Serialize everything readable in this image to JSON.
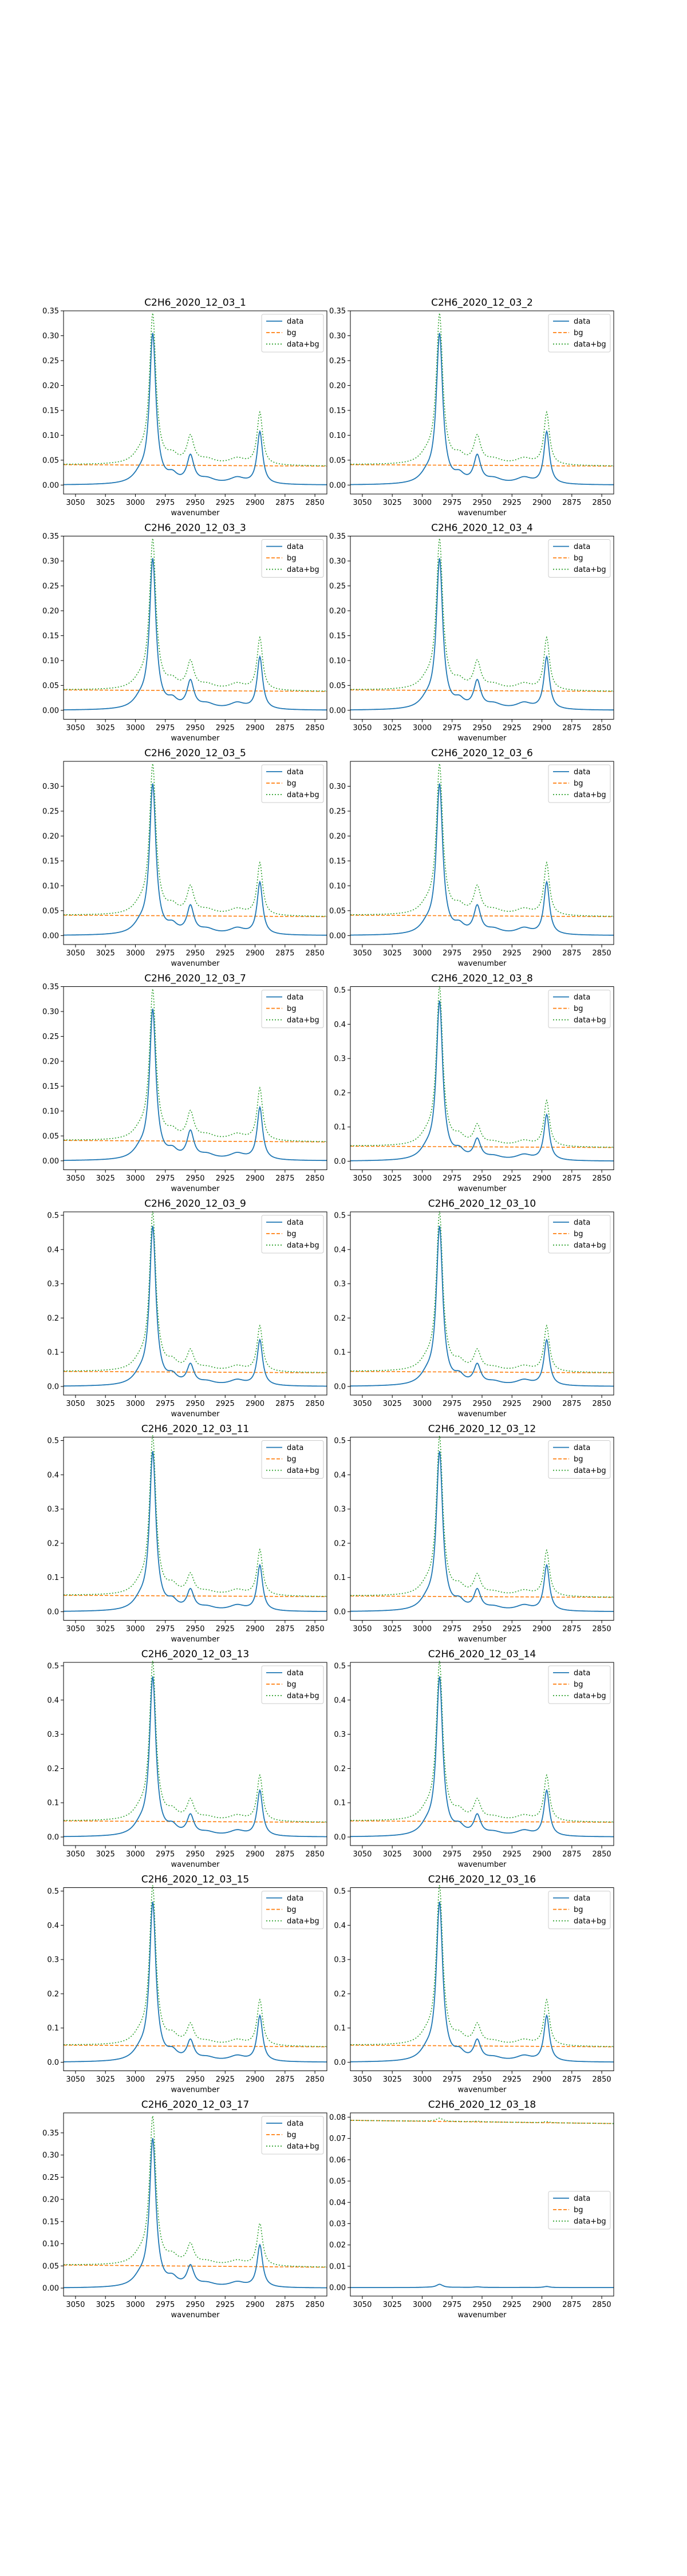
{
  "figure": {
    "background": "#ffffff"
  },
  "series_styles": [
    {
      "name": "data",
      "color": "#1f77b4",
      "dash": "solid"
    },
    {
      "name": "bg",
      "color": "#ff7f0e",
      "dash": "dashed"
    },
    {
      "name": "data+bg",
      "color": "#2ca02c",
      "dash": "dotted"
    }
  ],
  "chart_data": [
    {
      "type": "line",
      "title": "C2H6_2020_12_03_1",
      "xlabel": "wavenumber",
      "ylabel": "",
      "xlim": [
        3060,
        2840
      ],
      "x_ticks": [
        3050,
        3025,
        3000,
        2975,
        2950,
        2925,
        2900,
        2875,
        2850
      ],
      "ylim": [
        -0.018,
        0.35
      ],
      "y_ticks": [
        0.0,
        0.05,
        0.1,
        0.15,
        0.2,
        0.25,
        0.3,
        0.35
      ],
      "y_tick_decimals": 2,
      "grid": false,
      "legend_position": "upper-right",
      "data_peaks": {
        "baseline": 0.0,
        "main": 0.298,
        "mid": 0.054,
        "small": 0.105
      },
      "bg_level": [
        0.041,
        0.038
      ]
    },
    {
      "type": "line",
      "title": "C2H6_2020_12_03_2",
      "xlabel": "wavenumber",
      "ylabel": "",
      "xlim": [
        3060,
        2840
      ],
      "x_ticks": [
        3050,
        3025,
        3000,
        2975,
        2950,
        2925,
        2900,
        2875,
        2850
      ],
      "ylim": [
        -0.018,
        0.35
      ],
      "y_ticks": [
        0.0,
        0.05,
        0.1,
        0.15,
        0.2,
        0.25,
        0.3,
        0.35
      ],
      "y_tick_decimals": 2,
      "grid": false,
      "legend_position": "upper-right",
      "data_peaks": {
        "baseline": 0.0,
        "main": 0.298,
        "mid": 0.054,
        "small": 0.105
      },
      "bg_level": [
        0.041,
        0.038
      ]
    },
    {
      "type": "line",
      "title": "C2H6_2020_12_03_3",
      "xlabel": "wavenumber",
      "ylabel": "",
      "xlim": [
        3060,
        2840
      ],
      "x_ticks": [
        3050,
        3025,
        3000,
        2975,
        2950,
        2925,
        2900,
        2875,
        2850
      ],
      "ylim": [
        -0.018,
        0.35
      ],
      "y_ticks": [
        0.0,
        0.05,
        0.1,
        0.15,
        0.2,
        0.25,
        0.3,
        0.35
      ],
      "y_tick_decimals": 2,
      "grid": false,
      "legend_position": "upper-right",
      "data_peaks": {
        "baseline": 0.0,
        "main": 0.298,
        "mid": 0.054,
        "small": 0.105
      },
      "bg_level": [
        0.041,
        0.038
      ]
    },
    {
      "type": "line",
      "title": "C2H6_2020_12_03_4",
      "xlabel": "wavenumber",
      "ylabel": "",
      "xlim": [
        3060,
        2840
      ],
      "x_ticks": [
        3050,
        3025,
        3000,
        2975,
        2950,
        2925,
        2900,
        2875,
        2850
      ],
      "ylim": [
        -0.018,
        0.35
      ],
      "y_ticks": [
        0.0,
        0.05,
        0.1,
        0.15,
        0.2,
        0.25,
        0.3,
        0.35
      ],
      "y_tick_decimals": 2,
      "grid": false,
      "legend_position": "upper-right",
      "data_peaks": {
        "baseline": 0.0,
        "main": 0.298,
        "mid": 0.054,
        "small": 0.105
      },
      "bg_level": [
        0.041,
        0.038
      ]
    },
    {
      "type": "line",
      "title": "C2H6_2020_12_03_5",
      "xlabel": "wavenumber",
      "ylabel": "",
      "xlim": [
        3060,
        2840
      ],
      "x_ticks": [
        3050,
        3025,
        3000,
        2975,
        2950,
        2925,
        2900,
        2875,
        2850
      ],
      "ylim": [
        -0.018,
        0.35
      ],
      "y_ticks": [
        0.0,
        0.05,
        0.1,
        0.15,
        0.2,
        0.25,
        0.3
      ],
      "y_tick_decimals": 2,
      "grid": false,
      "legend_position": "upper-right",
      "data_peaks": {
        "baseline": 0.0,
        "main": 0.298,
        "mid": 0.054,
        "small": 0.105
      },
      "bg_level": [
        0.041,
        0.038
      ]
    },
    {
      "type": "line",
      "title": "C2H6_2020_12_03_6",
      "xlabel": "wavenumber",
      "ylabel": "",
      "xlim": [
        3060,
        2840
      ],
      "x_ticks": [
        3050,
        3025,
        3000,
        2975,
        2950,
        2925,
        2900,
        2875,
        2850
      ],
      "ylim": [
        -0.018,
        0.35
      ],
      "y_ticks": [
        0.0,
        0.05,
        0.1,
        0.15,
        0.2,
        0.25,
        0.3
      ],
      "y_tick_decimals": 2,
      "grid": false,
      "legend_position": "upper-right",
      "data_peaks": {
        "baseline": 0.0,
        "main": 0.298,
        "mid": 0.054,
        "small": 0.105
      },
      "bg_level": [
        0.041,
        0.038
      ]
    },
    {
      "type": "line",
      "title": "C2H6_2020_12_03_7",
      "xlabel": "wavenumber",
      "ylabel": "",
      "xlim": [
        3060,
        2840
      ],
      "x_ticks": [
        3050,
        3025,
        3000,
        2975,
        2950,
        2925,
        2900,
        2875,
        2850
      ],
      "ylim": [
        -0.018,
        0.35
      ],
      "y_ticks": [
        0.0,
        0.05,
        0.1,
        0.15,
        0.2,
        0.25,
        0.3,
        0.35
      ],
      "y_tick_decimals": 2,
      "grid": false,
      "legend_position": "upper-right",
      "data_peaks": {
        "baseline": 0.0,
        "main": 0.298,
        "mid": 0.054,
        "small": 0.105
      },
      "bg_level": [
        0.041,
        0.038
      ]
    },
    {
      "type": "line",
      "title": "C2H6_2020_12_03_8",
      "xlabel": "wavenumber",
      "ylabel": "",
      "xlim": [
        3060,
        2840
      ],
      "x_ticks": [
        3050,
        3025,
        3000,
        2975,
        2950,
        2925,
        2900,
        2875,
        2850
      ],
      "ylim": [
        -0.025,
        0.51
      ],
      "y_ticks": [
        0.0,
        0.1,
        0.2,
        0.3,
        0.4,
        0.5
      ],
      "y_tick_decimals": 1,
      "grid": false,
      "legend_position": "upper-right",
      "data_peaks": {
        "baseline": 0.0,
        "main": 0.458,
        "mid": 0.057,
        "small": 0.133
      },
      "bg_level": [
        0.044,
        0.04
      ]
    },
    {
      "type": "line",
      "title": "C2H6_2020_12_03_9",
      "xlabel": "wavenumber",
      "ylabel": "",
      "xlim": [
        3060,
        2840
      ],
      "x_ticks": [
        3050,
        3025,
        3000,
        2975,
        2950,
        2925,
        2900,
        2875,
        2850
      ],
      "ylim": [
        -0.025,
        0.51
      ],
      "y_ticks": [
        0.0,
        0.1,
        0.2,
        0.3,
        0.4,
        0.5
      ],
      "y_tick_decimals": 1,
      "grid": false,
      "legend_position": "upper-right",
      "data_peaks": {
        "baseline": 0.0,
        "main": 0.458,
        "mid": 0.057,
        "small": 0.133
      },
      "bg_level": [
        0.044,
        0.04
      ]
    },
    {
      "type": "line",
      "title": "C2H6_2020_12_03_10",
      "xlabel": "wavenumber",
      "ylabel": "",
      "xlim": [
        3060,
        2840
      ],
      "x_ticks": [
        3050,
        3025,
        3000,
        2975,
        2950,
        2925,
        2900,
        2875,
        2850
      ],
      "ylim": [
        -0.025,
        0.51
      ],
      "y_ticks": [
        0.0,
        0.1,
        0.2,
        0.3,
        0.4,
        0.5
      ],
      "y_tick_decimals": 1,
      "grid": false,
      "legend_position": "upper-right",
      "data_peaks": {
        "baseline": 0.0,
        "main": 0.458,
        "mid": 0.057,
        "small": 0.133
      },
      "bg_level": [
        0.044,
        0.04
      ]
    },
    {
      "type": "line",
      "title": "C2H6_2020_12_03_11",
      "xlabel": "wavenumber",
      "ylabel": "",
      "xlim": [
        3060,
        2840
      ],
      "x_ticks": [
        3050,
        3025,
        3000,
        2975,
        2950,
        2925,
        2900,
        2875,
        2850
      ],
      "ylim": [
        -0.025,
        0.51
      ],
      "y_ticks": [
        0.0,
        0.1,
        0.2,
        0.3,
        0.4,
        0.5
      ],
      "y_tick_decimals": 1,
      "grid": false,
      "legend_position": "upper-right",
      "data_peaks": {
        "baseline": 0.0,
        "main": 0.458,
        "mid": 0.057,
        "small": 0.133
      },
      "bg_level": [
        0.048,
        0.044
      ]
    },
    {
      "type": "line",
      "title": "C2H6_2020_12_03_12",
      "xlabel": "wavenumber",
      "ylabel": "",
      "xlim": [
        3060,
        2840
      ],
      "x_ticks": [
        3050,
        3025,
        3000,
        2975,
        2950,
        2925,
        2900,
        2875,
        2850
      ],
      "ylim": [
        -0.025,
        0.51
      ],
      "y_ticks": [
        0.0,
        0.1,
        0.2,
        0.3,
        0.4,
        0.5
      ],
      "y_tick_decimals": 1,
      "grid": false,
      "legend_position": "upper-right",
      "data_peaks": {
        "baseline": 0.0,
        "main": 0.458,
        "mid": 0.057,
        "small": 0.133
      },
      "bg_level": [
        0.046,
        0.042
      ]
    },
    {
      "type": "line",
      "title": "C2H6_2020_12_03_13",
      "xlabel": "wavenumber",
      "ylabel": "",
      "xlim": [
        3060,
        2840
      ],
      "x_ticks": [
        3050,
        3025,
        3000,
        2975,
        2950,
        2925,
        2900,
        2875,
        2850
      ],
      "ylim": [
        -0.025,
        0.51
      ],
      "y_ticks": [
        0.0,
        0.1,
        0.2,
        0.3,
        0.4,
        0.5
      ],
      "y_tick_decimals": 1,
      "grid": false,
      "legend_position": "upper-right",
      "data_peaks": {
        "baseline": 0.0,
        "main": 0.458,
        "mid": 0.057,
        "small": 0.133
      },
      "bg_level": [
        0.047,
        0.043
      ]
    },
    {
      "type": "line",
      "title": "C2H6_2020_12_03_14",
      "xlabel": "wavenumber",
      "ylabel": "",
      "xlim": [
        3060,
        2840
      ],
      "x_ticks": [
        3050,
        3025,
        3000,
        2975,
        2950,
        2925,
        2900,
        2875,
        2850
      ],
      "ylim": [
        -0.025,
        0.51
      ],
      "y_ticks": [
        0.0,
        0.1,
        0.2,
        0.3,
        0.4,
        0.5
      ],
      "y_tick_decimals": 1,
      "grid": false,
      "legend_position": "upper-right",
      "data_peaks": {
        "baseline": 0.0,
        "main": 0.458,
        "mid": 0.057,
        "small": 0.133
      },
      "bg_level": [
        0.047,
        0.043
      ]
    },
    {
      "type": "line",
      "title": "C2H6_2020_12_03_15",
      "xlabel": "wavenumber",
      "ylabel": "",
      "xlim": [
        3060,
        2840
      ],
      "x_ticks": [
        3050,
        3025,
        3000,
        2975,
        2950,
        2925,
        2900,
        2875,
        2850
      ],
      "ylim": [
        -0.025,
        0.51
      ],
      "y_ticks": [
        0.0,
        0.1,
        0.2,
        0.3,
        0.4,
        0.5
      ],
      "y_tick_decimals": 1,
      "grid": false,
      "legend_position": "upper-right",
      "data_peaks": {
        "baseline": 0.0,
        "main": 0.458,
        "mid": 0.057,
        "small": 0.133
      },
      "bg_level": [
        0.05,
        0.045
      ]
    },
    {
      "type": "line",
      "title": "C2H6_2020_12_03_16",
      "xlabel": "wavenumber",
      "ylabel": "",
      "xlim": [
        3060,
        2840
      ],
      "x_ticks": [
        3050,
        3025,
        3000,
        2975,
        2950,
        2925,
        2900,
        2875,
        2850
      ],
      "ylim": [
        -0.025,
        0.51
      ],
      "y_ticks": [
        0.0,
        0.1,
        0.2,
        0.3,
        0.4,
        0.5
      ],
      "y_tick_decimals": 1,
      "grid": false,
      "legend_position": "upper-right",
      "data_peaks": {
        "baseline": 0.0,
        "main": 0.458,
        "mid": 0.057,
        "small": 0.133
      },
      "bg_level": [
        0.05,
        0.045
      ]
    },
    {
      "type": "line",
      "title": "C2H6_2020_12_03_17",
      "xlabel": "wavenumber",
      "ylabel": "",
      "xlim": [
        3060,
        2840
      ],
      "x_ticks": [
        3050,
        3025,
        3000,
        2975,
        2950,
        2925,
        2900,
        2875,
        2850
      ],
      "ylim": [
        -0.018,
        0.395
      ],
      "y_ticks": [
        0.0,
        0.05,
        0.1,
        0.15,
        0.2,
        0.25,
        0.3,
        0.35
      ],
      "y_tick_decimals": 2,
      "grid": false,
      "legend_position": "upper-right",
      "data_peaks": {
        "baseline": 0.0,
        "main": 0.33,
        "mid": 0.045,
        "small": 0.095
      },
      "bg_level": [
        0.052,
        0.047
      ]
    },
    {
      "type": "line",
      "title": "C2H6_2020_12_03_18",
      "xlabel": "wavenumber",
      "ylabel": "",
      "xlim": [
        3060,
        2840
      ],
      "x_ticks": [
        3050,
        3025,
        3000,
        2975,
        2950,
        2925,
        2900,
        2875,
        2850
      ],
      "ylim": [
        -0.004,
        0.082
      ],
      "y_ticks": [
        0.0,
        0.01,
        0.02,
        0.03,
        0.04,
        0.05,
        0.06,
        0.07,
        0.08
      ],
      "y_tick_decimals": 2,
      "grid": false,
      "legend_position": "center-right",
      "data_peaks": {
        "baseline": 0.0,
        "main": 0.0015,
        "mid": 0.0003,
        "small": 0.0005
      },
      "bg_level": [
        0.0785,
        0.077
      ]
    }
  ]
}
